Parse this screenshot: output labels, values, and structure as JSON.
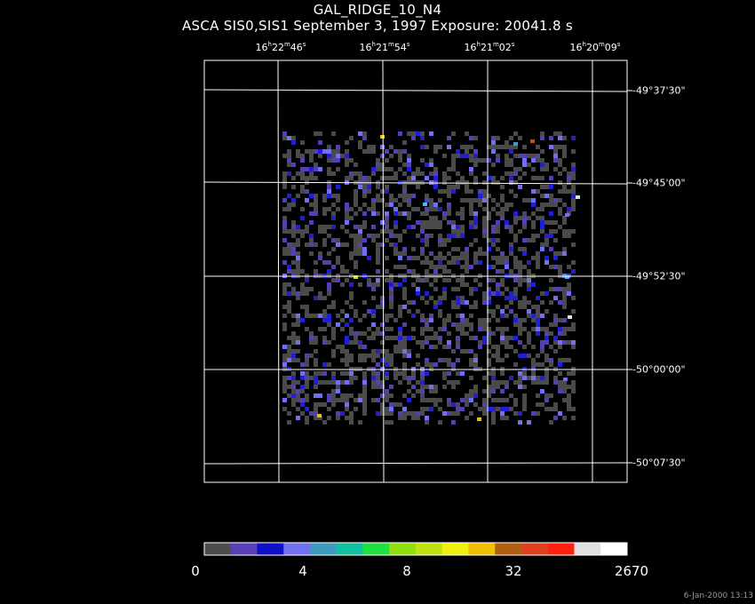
{
  "header": {
    "title": "GAL_RIDGE_10_N4",
    "subtitle": "ASCA SIS0,SIS1 September 3, 1997 Exposure: 20041.8 s"
  },
  "ra_labels": [
    {
      "h": "16",
      "m": "22",
      "s": "46"
    },
    {
      "h": "16",
      "m": "21",
      "s": "54"
    },
    {
      "h": "16",
      "m": "21",
      "s": "02"
    },
    {
      "h": "16",
      "m": "20",
      "s": "09"
    }
  ],
  "dec_labels": [
    "-49°37'30\"",
    "-49°45'00\"",
    "-49°52'30\"",
    "-50°00'00\"",
    "-50°07'30\""
  ],
  "colorbar": {
    "colors": [
      "#4d4d4d",
      "#5a3fb8",
      "#1010c8",
      "#7070f0",
      "#3d9ac0",
      "#10c0a0",
      "#20e040",
      "#90e010",
      "#c0e010",
      "#f0f010",
      "#f0c000",
      "#b06010",
      "#e04020",
      "#ff2010",
      "#e0e0e0",
      "#ffffff"
    ],
    "labels": [
      "0",
      "4",
      "8",
      "32",
      "2670"
    ]
  },
  "timestamp": "6-Jan-2000 13:13"
}
